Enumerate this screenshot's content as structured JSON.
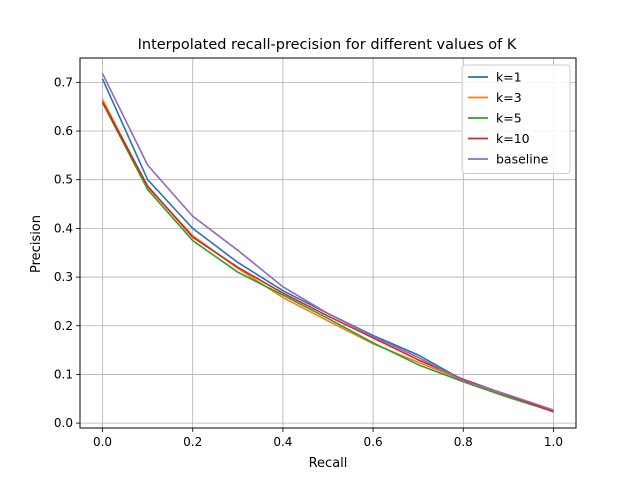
{
  "chart_data": {
    "type": "line",
    "title": "Interpolated recall-precision for different values of K",
    "xlabel": "Recall",
    "ylabel": "Precision",
    "xlim": [
      -0.05,
      1.05
    ],
    "ylim": [
      -0.01,
      0.75
    ],
    "grid": true,
    "legend_position": "top-right",
    "x": [
      0.0,
      0.1,
      0.2,
      0.3,
      0.4,
      0.5,
      0.6,
      0.7,
      0.8,
      0.9,
      1.0
    ],
    "xticks": [
      "0.0",
      "0.2",
      "0.4",
      "0.6",
      "0.8",
      "1.0"
    ],
    "xtick_values": [
      0.0,
      0.2,
      0.4,
      0.6,
      0.8,
      1.0
    ],
    "yticks": [
      "0.0",
      "0.1",
      "0.2",
      "0.3",
      "0.4",
      "0.5",
      "0.6",
      "0.7"
    ],
    "ytick_values": [
      0.0,
      0.1,
      0.2,
      0.3,
      0.4,
      0.5,
      0.6,
      0.7
    ],
    "series": [
      {
        "name": "k=1",
        "color": "#1f77b4",
        "values": [
          0.707,
          0.5,
          0.4,
          0.33,
          0.272,
          0.225,
          0.18,
          0.14,
          0.088,
          0.056,
          0.026
        ]
      },
      {
        "name": "k=3",
        "color": "#ff7f0e",
        "values": [
          0.665,
          0.485,
          0.385,
          0.318,
          0.258,
          0.21,
          0.163,
          0.125,
          0.088,
          0.056,
          0.025
        ]
      },
      {
        "name": "k=5",
        "color": "#2ca02c",
        "values": [
          0.658,
          0.48,
          0.375,
          0.31,
          0.263,
          0.215,
          0.165,
          0.12,
          0.085,
          0.053,
          0.024
        ]
      },
      {
        "name": "k=10",
        "color": "#d62728",
        "values": [
          0.66,
          0.487,
          0.382,
          0.32,
          0.267,
          0.22,
          0.175,
          0.13,
          0.09,
          0.057,
          0.023
        ]
      },
      {
        "name": "baseline",
        "color": "#9467bd",
        "values": [
          0.718,
          0.53,
          0.425,
          0.355,
          0.28,
          0.225,
          0.178,
          0.135,
          0.087,
          0.058,
          0.027
        ]
      }
    ]
  }
}
